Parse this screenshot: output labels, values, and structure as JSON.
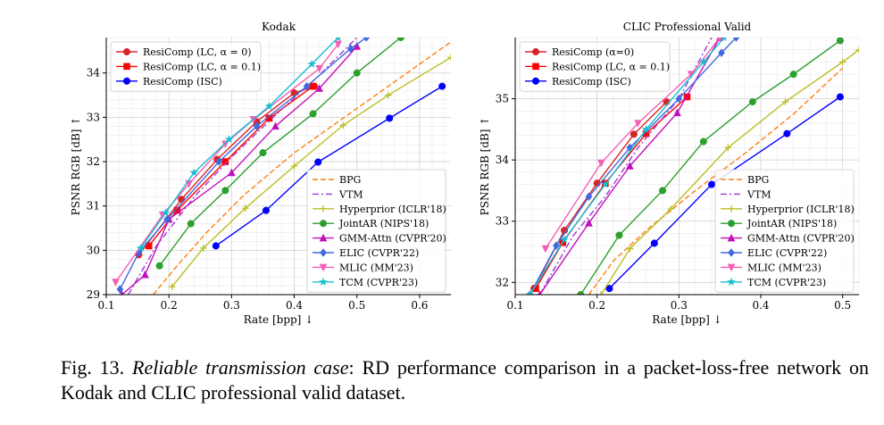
{
  "caption": {
    "label": "Fig. 13.",
    "emphasis": "Reliable transmission case",
    "text": ": RD performance comparison in a packet-loss-free network on Kodak and CLIC professional valid dataset."
  },
  "chart_data": [
    {
      "type": "line",
      "title": "Kodak",
      "xlabel": "Rate [bpp] ↓",
      "ylabel": "PSNR RGB [dB] ↑",
      "xlim": [
        0.1,
        0.65
      ],
      "ylim": [
        29,
        34.8
      ],
      "xticks": [
        0.1,
        0.2,
        0.3,
        0.4,
        0.5,
        0.6
      ],
      "xtick_labels": [
        "0.1",
        "0.2",
        "0.3",
        "0.4",
        "0.5",
        "0.6"
      ],
      "yticks": [
        29,
        30,
        31,
        32,
        33,
        34
      ],
      "ytick_labels": [
        "29",
        "30",
        "31",
        "32",
        "33",
        "34"
      ],
      "grid": true,
      "legends": [
        {
          "position": "top-left",
          "entries": [
            "ResiComp (LC, α = 0)",
            "ResiComp (LC, α = 0.1)",
            "ResiComp (ISC)"
          ]
        },
        {
          "position": "bottom-right",
          "entries": [
            "BPG",
            "VTM",
            "Hyperprior (ICLR'18)",
            "JointAR (NIPS'18)",
            "GMM-Attn (CVPR'20)",
            "ELIC (CVPR'22)",
            "MLIC (MM'23)",
            "TCM (CVPR'23)"
          ]
        }
      ],
      "series": [
        {
          "name": "ResiComp (LC, α = 0)",
          "color": "#d62728",
          "marker": "circle",
          "dash": "solid",
          "x": [
            0.152,
            0.22,
            0.277,
            0.34,
            0.4,
            0.432
          ],
          "y": [
            29.9,
            31.15,
            32.05,
            32.9,
            33.55,
            33.7
          ]
        },
        {
          "name": "ResiComp (LC, α = 0.1)",
          "color": "#ff0000",
          "marker": "square",
          "dash": "solid",
          "x": [
            0.168,
            0.213,
            0.29,
            0.36,
            0.43
          ],
          "y": [
            30.1,
            30.9,
            32.0,
            32.98,
            33.7
          ]
        },
        {
          "name": "ResiComp (ISC)",
          "color": "#0000ff",
          "marker": "circle",
          "dash": "solid",
          "x": [
            0.275,
            0.355,
            0.438,
            0.552,
            0.636
          ],
          "y": [
            30.1,
            30.9,
            31.99,
            32.98,
            33.7
          ]
        },
        {
          "name": "BPG",
          "color": "#ff7f0e",
          "marker": "none",
          "dash": "dashed",
          "x": [
            0.175,
            0.21,
            0.26,
            0.32,
            0.4,
            0.48,
            0.56,
            0.65
          ],
          "y": [
            29.0,
            29.6,
            30.4,
            31.25,
            32.2,
            33.0,
            33.8,
            34.7
          ]
        },
        {
          "name": "VTM",
          "color": "#9d39d6",
          "marker": "none",
          "dash": "dashdot",
          "x": [
            0.135,
            0.18,
            0.24,
            0.3,
            0.37,
            0.44,
            0.5
          ],
          "y": [
            29.0,
            30.1,
            31.2,
            32.1,
            33.05,
            33.95,
            34.8
          ]
        },
        {
          "name": "Hyperprior (ICLR'18)",
          "color": "#bcbd22",
          "marker": "plus",
          "dash": "solid",
          "x": [
            0.205,
            0.255,
            0.322,
            0.4,
            0.478,
            0.55,
            0.65
          ],
          "y": [
            29.18,
            30.05,
            30.95,
            31.9,
            32.82,
            33.5,
            34.35
          ]
        },
        {
          "name": "JointAR (NIPS'18)",
          "color": "#2ca02c",
          "marker": "circle",
          "dash": "solid",
          "x": [
            0.185,
            0.235,
            0.29,
            0.35,
            0.43,
            0.5,
            0.57
          ],
          "y": [
            29.65,
            30.6,
            31.35,
            32.2,
            33.08,
            34.0,
            34.8
          ]
        },
        {
          "name": "GMM-Attn (CVPR'20)",
          "color": "#c20fbc",
          "marker": "triangle",
          "dash": "solid",
          "x": [
            0.125,
            0.162,
            0.2,
            0.3,
            0.37,
            0.44,
            0.5
          ],
          "y": [
            29.0,
            29.45,
            30.7,
            31.75,
            32.8,
            33.65,
            34.6
          ]
        },
        {
          "name": "ELIC (CVPR'22)",
          "color": "#4169e1",
          "marker": "diamond",
          "dash": "solid",
          "x": [
            0.122,
            0.152,
            0.197,
            0.28,
            0.34,
            0.42,
            0.49,
            0.515
          ],
          "y": [
            29.12,
            29.95,
            30.7,
            32.0,
            32.8,
            33.7,
            34.55,
            34.8
          ]
        },
        {
          "name": "MLIC (MM'23)",
          "color": "#f45fb6",
          "marker": "triangle-down",
          "dash": "solid",
          "x": [
            0.115,
            0.19,
            0.232,
            0.29,
            0.335,
            0.44,
            0.47
          ],
          "y": [
            29.28,
            30.8,
            31.5,
            32.4,
            32.95,
            34.1,
            34.65
          ]
        },
        {
          "name": "TCM (CVPR'23)",
          "color": "#17becf",
          "marker": "star",
          "dash": "solid",
          "x": [
            0.155,
            0.195,
            0.24,
            0.296,
            0.36,
            0.428,
            0.47
          ],
          "y": [
            30.05,
            30.85,
            31.75,
            32.5,
            33.25,
            34.2,
            34.8
          ]
        }
      ]
    },
    {
      "type": "line",
      "title": "CLIC Professional Valid",
      "xlabel": "Rate [bpp] ↓",
      "ylabel": "PSNR RGB [dB] ↑",
      "xlim": [
        0.1,
        0.52
      ],
      "ylim": [
        31.8,
        36.0
      ],
      "xticks": [
        0.1,
        0.2,
        0.3,
        0.4,
        0.5
      ],
      "xtick_labels": [
        "0.1",
        "0.2",
        "0.3",
        "0.4",
        "0.5"
      ],
      "yticks": [
        32,
        33,
        34,
        35
      ],
      "ytick_labels": [
        "32",
        "33",
        "34",
        "35"
      ],
      "grid": true,
      "legends": [
        {
          "position": "top-left",
          "entries": [
            "ResiComp (α=0)",
            "ResiComp (LC, α = 0.1)",
            "ResiComp (ISC)"
          ]
        },
        {
          "position": "bottom-right",
          "entries": [
            "BPG",
            "VTM",
            "Hyperprior (ICLR'18)",
            "JointAR (NIPS'18)",
            "GMM-Attn (CVPR'20)",
            "ELIC (CVPR'22)",
            "MLIC (MM'23)",
            "TCM (CVPR'23)"
          ]
        }
      ],
      "series": [
        {
          "name": "ResiComp (α=0)",
          "color": "#d62728",
          "marker": "circle",
          "dash": "solid",
          "x": [
            0.123,
            0.16,
            0.2,
            0.245,
            0.285
          ],
          "y": [
            31.9,
            32.85,
            33.62,
            34.42,
            34.95
          ]
        },
        {
          "name": "ResiComp (LC, α = 0.1)",
          "color": "#ff0000",
          "marker": "square",
          "dash": "solid",
          "x": [
            0.125,
            0.158,
            0.21,
            0.26,
            0.31
          ],
          "y": [
            31.9,
            32.65,
            33.62,
            34.43,
            35.03
          ]
        },
        {
          "name": "ResiComp (ISC)",
          "color": "#0000ff",
          "marker": "circle",
          "dash": "solid",
          "x": [
            0.215,
            0.27,
            0.34,
            0.432,
            0.497
          ],
          "y": [
            31.9,
            32.64,
            33.6,
            34.43,
            35.03
          ]
        },
        {
          "name": "BPG",
          "color": "#ff7f0e",
          "marker": "none",
          "dash": "dashed",
          "x": [
            0.19,
            0.22,
            0.26,
            0.32,
            0.38,
            0.44,
            0.5
          ],
          "y": [
            31.8,
            32.35,
            32.85,
            33.5,
            34.1,
            34.75,
            35.5
          ]
        },
        {
          "name": "VTM",
          "color": "#9d39d6",
          "marker": "none",
          "dash": "dashdot",
          "x": [
            0.13,
            0.17,
            0.21,
            0.25,
            0.3,
            0.34
          ],
          "y": [
            31.8,
            32.75,
            33.4,
            34.2,
            35.0,
            36.0
          ]
        },
        {
          "name": "Hyperprior (ICLR'18)",
          "color": "#bcbd22",
          "marker": "plus",
          "dash": "solid",
          "x": [
            0.205,
            0.24,
            0.29,
            0.36,
            0.43,
            0.5,
            0.52
          ],
          "y": [
            31.8,
            32.55,
            33.2,
            34.2,
            34.95,
            35.6,
            35.8
          ]
        },
        {
          "name": "JointAR (NIPS'18)",
          "color": "#2ca02c",
          "marker": "circle",
          "dash": "solid",
          "x": [
            0.18,
            0.227,
            0.28,
            0.33,
            0.39,
            0.44,
            0.497
          ],
          "y": [
            31.8,
            32.77,
            33.5,
            34.3,
            34.95,
            35.4,
            35.95
          ]
        },
        {
          "name": "GMM-Attn (CVPR'20)",
          "color": "#c20fbc",
          "marker": "triangle",
          "dash": "solid",
          "x": [
            0.13,
            0.19,
            0.24,
            0.298,
            0.35
          ],
          "y": [
            31.8,
            32.97,
            33.9,
            34.77,
            36.0
          ]
        },
        {
          "name": "ELIC (CVPR'22)",
          "color": "#4169e1",
          "marker": "diamond",
          "dash": "solid",
          "x": [
            0.118,
            0.15,
            0.19,
            0.24,
            0.3,
            0.352,
            0.37
          ],
          "y": [
            31.8,
            32.6,
            33.4,
            34.2,
            35.0,
            35.75,
            36.0
          ]
        },
        {
          "name": "MLIC (MM'23)",
          "color": "#f45fb6",
          "marker": "triangle-down",
          "dash": "solid",
          "x": [
            0.137,
            0.205,
            0.25,
            0.315,
            0.35
          ],
          "y": [
            32.55,
            33.95,
            34.6,
            35.4,
            36.0
          ]
        },
        {
          "name": "TCM (CVPR'23)",
          "color": "#17becf",
          "marker": "star",
          "dash": "solid",
          "x": [
            0.118,
            0.16,
            0.21,
            0.26,
            0.33,
            0.355
          ],
          "y": [
            31.8,
            32.7,
            33.6,
            34.5,
            35.6,
            36.0
          ]
        }
      ]
    }
  ]
}
